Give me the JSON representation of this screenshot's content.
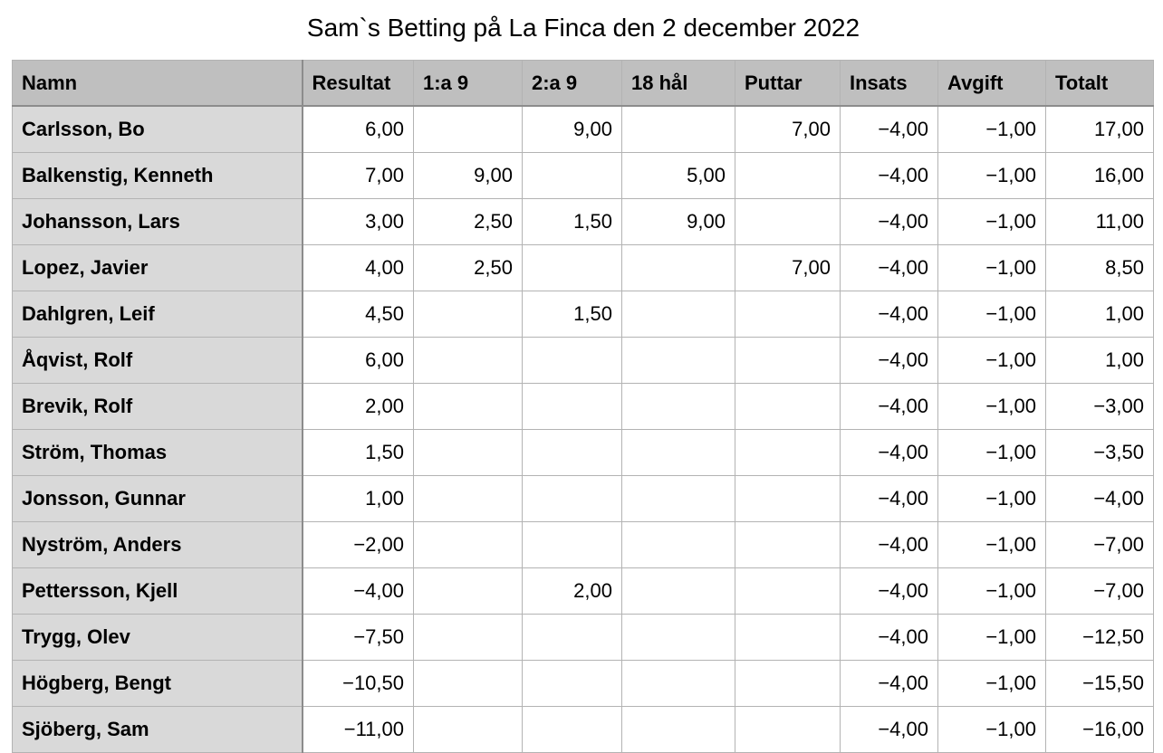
{
  "title": "Sam`s Betting på La Finca den 2 december 2022",
  "table": {
    "headers": [
      "Namn",
      "Resultat",
      "1:a 9",
      "2:a 9",
      "18 hål",
      "Puttar",
      "Insats",
      "Avgift",
      "Totalt"
    ],
    "rows": [
      [
        "Carlsson, Bo",
        "6,00",
        "",
        "9,00",
        "",
        "7,00",
        "−4,00",
        "−1,00",
        "17,00"
      ],
      [
        "Balkenstig, Kenneth",
        "7,00",
        "9,00",
        "",
        "5,00",
        "",
        "−4,00",
        "−1,00",
        "16,00"
      ],
      [
        "Johansson, Lars",
        "3,00",
        "2,50",
        "1,50",
        "9,00",
        "",
        "−4,00",
        "−1,00",
        "11,00"
      ],
      [
        "Lopez, Javier",
        "4,00",
        "2,50",
        "",
        "",
        "7,00",
        "−4,00",
        "−1,00",
        "8,50"
      ],
      [
        "Dahlgren, Leif",
        "4,50",
        "",
        "1,50",
        "",
        "",
        "−4,00",
        "−1,00",
        "1,00"
      ],
      [
        "Åqvist, Rolf",
        "6,00",
        "",
        "",
        "",
        "",
        "−4,00",
        "−1,00",
        "1,00"
      ],
      [
        "Brevik, Rolf",
        "2,00",
        "",
        "",
        "",
        "",
        "−4,00",
        "−1,00",
        "−3,00"
      ],
      [
        "Ström, Thomas",
        "1,50",
        "",
        "",
        "",
        "",
        "−4,00",
        "−1,00",
        "−3,50"
      ],
      [
        "Jonsson, Gunnar",
        "1,00",
        "",
        "",
        "",
        "",
        "−4,00",
        "−1,00",
        "−4,00"
      ],
      [
        "Nyström, Anders",
        "−2,00",
        "",
        "",
        "",
        "",
        "−4,00",
        "−1,00",
        "−7,00"
      ],
      [
        "Pettersson, Kjell",
        "−4,00",
        "",
        "2,00",
        "",
        "",
        "−4,00",
        "−1,00",
        "−7,00"
      ],
      [
        "Trygg, Olev",
        "−7,50",
        "",
        "",
        "",
        "",
        "−4,00",
        "−1,00",
        "−12,50"
      ],
      [
        "Högberg, Bengt",
        "−10,50",
        "",
        "",
        "",
        "",
        "−4,00",
        "−1,00",
        "−15,50"
      ],
      [
        "Sjöberg, Sam",
        "−11,00",
        "",
        "",
        "",
        "",
        "−4,00",
        "−1,00",
        "−16,00"
      ]
    ]
  }
}
